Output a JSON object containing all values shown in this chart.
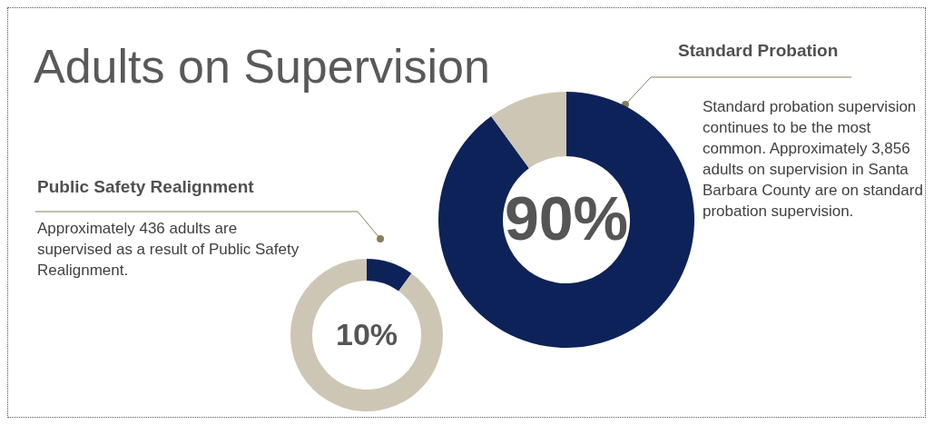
{
  "chart_data": [
    {
      "type": "donut",
      "title": "Adults on Supervision",
      "subtitle": "Standard Probation",
      "annotations": [
        "Standard probation supervision continues to be the most common. Approximately 3,856 adults on supervision in Santa Barbara County are on standard probation supervision."
      ],
      "categories": [
        null,
        null
      ],
      "values": [
        90,
        10
      ],
      "colors": [
        "#0d2259",
        "#cdc6b4"
      ],
      "value_labels": [
        "90%",
        null
      ]
    },
    {
      "type": "donut",
      "subtitle": "Public Safety Realignment",
      "annotations": [
        "Approximately 436  adults are supervised as a result of Public Safety Realignment."
      ],
      "categories": [
        null,
        null
      ],
      "values": [
        10,
        90
      ],
      "colors": [
        "#0d2259",
        "#cdc6b4"
      ],
      "value_labels": [
        "10%",
        null
      ]
    }
  ]
}
